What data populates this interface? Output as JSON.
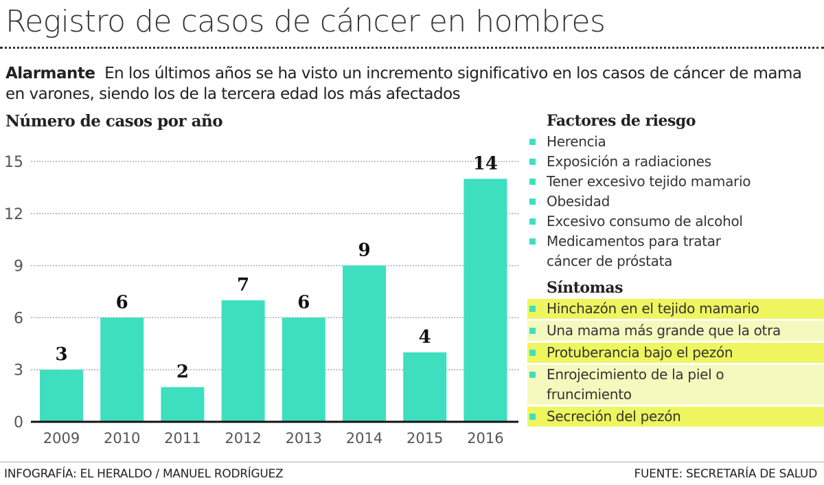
{
  "title": "Registro de casos de cáncer en hombres",
  "intro": {
    "lead": "Alarmante",
    "text": "En los últimos años se ha visto un incremento significativo en los casos de cáncer de mama en varones, siendo los de la tercera edad los más afectados"
  },
  "chart_data": {
    "type": "bar",
    "title": "Número de casos por año",
    "categories": [
      "2009",
      "2010",
      "2011",
      "2012",
      "2013",
      "2014",
      "2015",
      "2016"
    ],
    "values": [
      3,
      6,
      2,
      7,
      6,
      9,
      4,
      14
    ],
    "ylim": [
      0,
      15
    ],
    "yticks": [
      0,
      3,
      6,
      9,
      12,
      15
    ],
    "grid": true,
    "bar_color": "#3ddfbf",
    "data_labels": true
  },
  "risk_factors": {
    "title": "Factores de riesgo",
    "items": [
      "Herencia",
      "Exposición a radiaciones",
      "Tener excesivo tejido mamario",
      "Obesidad",
      "Excesivo consumo de alcohol",
      "Medicamentos para tratar cáncer de próstata"
    ]
  },
  "symptoms": {
    "title": "Síntomas",
    "items": [
      "Hinchazón en el tejido mamario",
      "Una mama más grande que la otra",
      "Protuberancia bajo el pezón",
      "Enrojecimiento de la piel o fruncimiento",
      "Secreción del pezón"
    ],
    "highlight_colors": [
      "#eef55f",
      "#f6f9bd"
    ]
  },
  "footer": {
    "credit": "INFOGRAFÍA: EL HERALDO / MANUEL RODRÍGUEZ",
    "source": "FUENTE: SECRETARÍA DE SALUD"
  }
}
